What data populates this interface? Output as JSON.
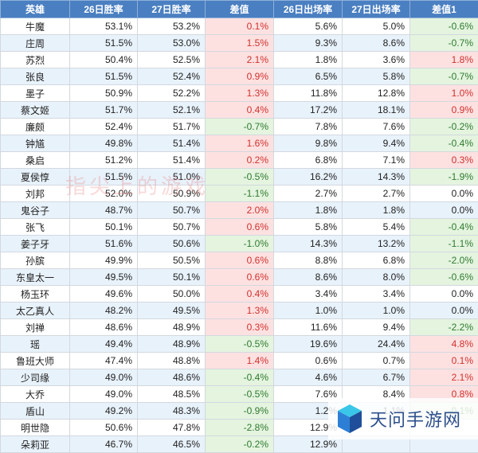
{
  "table": {
    "headers": [
      "英雄",
      "26日胜率",
      "27日胜率",
      "差值",
      "26日出场率",
      "27日出场率",
      "差值1"
    ],
    "rows": [
      [
        "牛魔",
        "53.1%",
        "53.2%",
        "0.1%",
        "5.6%",
        "5.0%",
        "-0.6%"
      ],
      [
        "庄周",
        "51.5%",
        "53.0%",
        "1.5%",
        "9.3%",
        "8.6%",
        "-0.7%"
      ],
      [
        "苏烈",
        "50.4%",
        "52.5%",
        "2.1%",
        "1.8%",
        "3.6%",
        "1.8%"
      ],
      [
        "张良",
        "51.5%",
        "52.4%",
        "0.9%",
        "6.5%",
        "5.8%",
        "-0.7%"
      ],
      [
        "墨子",
        "50.9%",
        "52.2%",
        "1.3%",
        "11.8%",
        "12.8%",
        "1.0%"
      ],
      [
        "蔡文姬",
        "51.7%",
        "52.1%",
        "0.4%",
        "17.2%",
        "18.1%",
        "0.9%"
      ],
      [
        "廉颇",
        "52.4%",
        "51.7%",
        "-0.7%",
        "7.8%",
        "7.6%",
        "-0.2%"
      ],
      [
        "钟馗",
        "49.8%",
        "51.4%",
        "1.6%",
        "9.8%",
        "9.4%",
        "-0.4%"
      ],
      [
        "桑启",
        "51.2%",
        "51.4%",
        "0.2%",
        "6.8%",
        "7.1%",
        "0.3%"
      ],
      [
        "夏侯惇",
        "51.5%",
        "51.0%",
        "-0.5%",
        "16.2%",
        "14.3%",
        "-1.9%"
      ],
      [
        "刘邦",
        "52.0%",
        "50.9%",
        "-1.1%",
        "2.7%",
        "2.7%",
        "0.0%"
      ],
      [
        "鬼谷子",
        "48.7%",
        "50.7%",
        "2.0%",
        "1.8%",
        "1.8%",
        "0.0%"
      ],
      [
        "张飞",
        "50.1%",
        "50.7%",
        "0.6%",
        "5.8%",
        "5.4%",
        "-0.4%"
      ],
      [
        "姜子牙",
        "51.6%",
        "50.6%",
        "-1.0%",
        "14.3%",
        "13.2%",
        "-1.1%"
      ],
      [
        "孙膑",
        "49.9%",
        "50.5%",
        "0.6%",
        "8.8%",
        "6.8%",
        "-2.0%"
      ],
      [
        "东皇太一",
        "49.5%",
        "50.1%",
        "0.6%",
        "8.6%",
        "8.0%",
        "-0.6%"
      ],
      [
        "杨玉环",
        "49.6%",
        "50.0%",
        "0.4%",
        "3.4%",
        "3.4%",
        "0.0%"
      ],
      [
        "太乙真人",
        "48.2%",
        "49.5%",
        "1.3%",
        "1.0%",
        "1.0%",
        "0.0%"
      ],
      [
        "刘禅",
        "48.6%",
        "48.9%",
        "0.3%",
        "11.6%",
        "9.4%",
        "-2.2%"
      ],
      [
        "瑶",
        "49.4%",
        "48.9%",
        "-0.5%",
        "19.6%",
        "24.4%",
        "4.8%"
      ],
      [
        "鲁班大师",
        "47.4%",
        "48.8%",
        "1.4%",
        "0.6%",
        "0.7%",
        "0.1%"
      ],
      [
        "少司缘",
        "49.0%",
        "48.6%",
        "-0.4%",
        "4.6%",
        "6.7%",
        "2.1%"
      ],
      [
        "大乔",
        "49.0%",
        "48.5%",
        "-0.5%",
        "7.6%",
        "8.4%",
        "0.8%"
      ],
      [
        "盾山",
        "49.2%",
        "48.3%",
        "-0.9%",
        "1.2%",
        "1.1%",
        "-0.1%"
      ],
      [
        "明世隐",
        "50.6%",
        "47.8%",
        "-2.8%",
        "12.9%",
        "",
        ""
      ],
      [
        "朵莉亚",
        "46.7%",
        "46.5%",
        "-0.2%",
        "12.9%",
        "",
        ""
      ]
    ]
  },
  "watermark": {
    "text": "指尖上的游戏"
  },
  "logo": {
    "text": "天问手游网",
    "colors": {
      "blue": "#2d7fd6",
      "cyan": "#39c6e8",
      "dark": "#1f4f9a"
    }
  },
  "colors": {
    "header": "#4a7fc1",
    "positive_bg": "#fde1e1",
    "negative_bg": "#e4f4df",
    "stripe": "#e8f2fb"
  }
}
